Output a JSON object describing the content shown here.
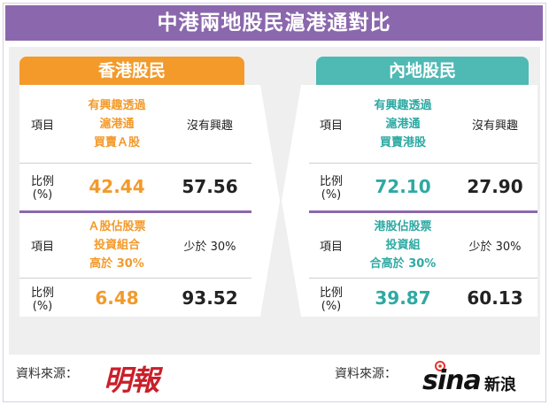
{
  "title": "中港兩地股民滬港通對比",
  "hk": {
    "header": "香港股民",
    "row1": {
      "item": "項目",
      "col1_line1": "有興趣透過",
      "col1_line2": "滬港通",
      "col1_line3": "買賣Ａ股",
      "col2": "沒有興趣"
    },
    "row2": {
      "item_line1": "比例",
      "item_line2": "(%)",
      "v1": "42.44",
      "v2": "57.56"
    },
    "row3": {
      "item": "項目",
      "col1_line1": "Ａ股佔股票",
      "col1_line2": "投資組合",
      "col1_line3": "高於 30%",
      "col2": "少於 30%"
    },
    "row4": {
      "item_line1": "比例",
      "item_line2": "(%)",
      "v1": "6.48",
      "v2": "93.52"
    }
  },
  "ml": {
    "header": "內地股民",
    "row1": {
      "item": "項目",
      "col1_line1": "有興趣透過",
      "col1_line2": "滬港通",
      "col1_line3": "買賣港股",
      "col2": "沒有興趣"
    },
    "row2": {
      "item_line1": "比例",
      "item_line2": "(%)",
      "v1": "72.10",
      "v2": "27.90"
    },
    "row3": {
      "item": "項目",
      "col1_line1": "港股佔股票",
      "col1_line2": "投資組",
      "col1_line3": "合高於 30%",
      "col2": "少於 30%"
    },
    "row4": {
      "item_line1": "比例",
      "item_line2": "(%)",
      "v1": "39.87",
      "v2": "60.13"
    }
  },
  "footer": {
    "left_source": "資料來源：",
    "left_logo": "明報",
    "right_source": "資料來源：",
    "right_logo_latin": "sina",
    "right_logo_cn": "新浪"
  },
  "colors": {
    "purple": "#8b68ad",
    "orange": "#f39a2a",
    "teal": "#4fb9b4"
  }
}
